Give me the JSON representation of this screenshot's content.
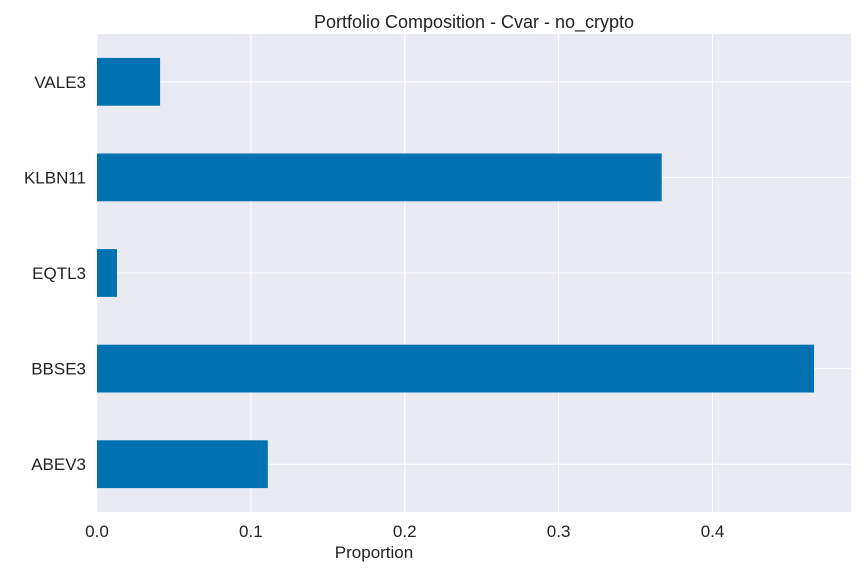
{
  "chart_data": {
    "type": "bar",
    "orientation": "horizontal",
    "title": "Portfolio Composition - Cvar - no_crypto",
    "xlabel": "Proportion",
    "ylabel": "",
    "categories": [
      "ABEV3",
      "BBSE3",
      "EQTL3",
      "KLBN11",
      "VALE3"
    ],
    "values": [
      0.111,
      0.466,
      0.013,
      0.367,
      0.041
    ],
    "xlim": [
      0,
      0.49
    ],
    "xticks": [
      0.0,
      0.1,
      0.2,
      0.3,
      0.4
    ],
    "xtick_labels": [
      "0.0",
      "0.1",
      "0.2",
      "0.3",
      "0.4"
    ],
    "grid": true,
    "legend": "none",
    "colors": {
      "bar": "#0072b2",
      "plot_background": "#eaeaf2",
      "grid": "#ffffff"
    }
  }
}
